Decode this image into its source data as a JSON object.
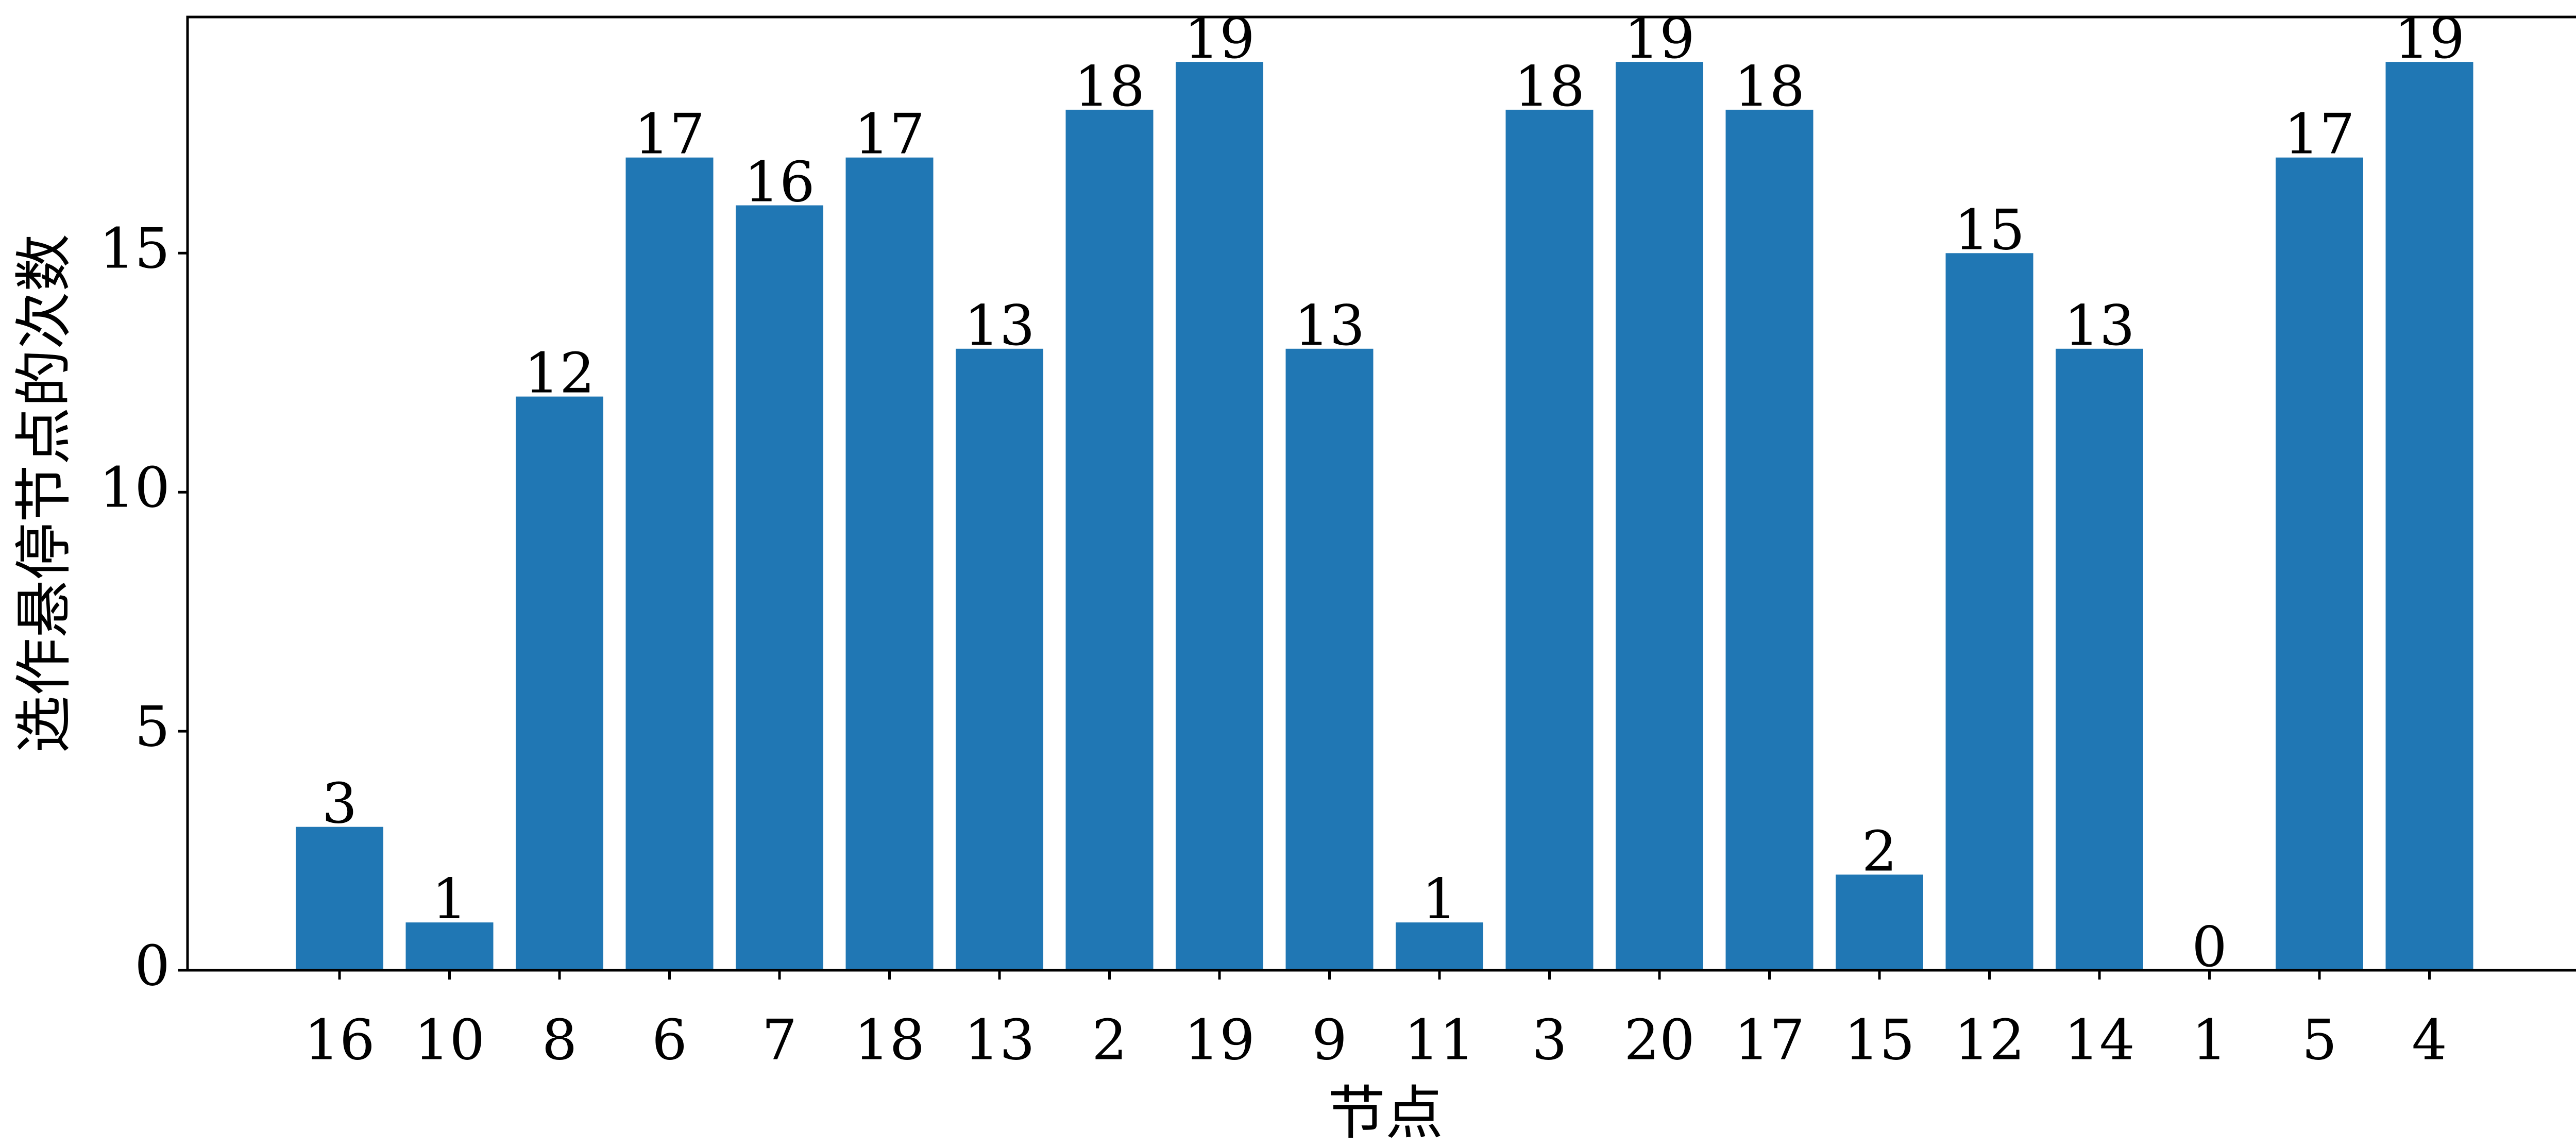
{
  "chart_data": {
    "type": "bar",
    "categories": [
      "16",
      "10",
      "8",
      "6",
      "7",
      "18",
      "13",
      "2",
      "19",
      "9",
      "11",
      "3",
      "20",
      "17",
      "15",
      "12",
      "14",
      "1",
      "5",
      "4"
    ],
    "values": [
      3,
      1,
      12,
      17,
      16,
      17,
      13,
      18,
      19,
      13,
      1,
      18,
      19,
      18,
      2,
      15,
      13,
      0,
      17,
      19
    ],
    "data_labels": [
      "3",
      "1",
      "12",
      "17",
      "16",
      "17",
      "13",
      "18",
      "19",
      "13",
      "1",
      "18",
      "19",
      "18",
      "2",
      "15",
      "13",
      "0",
      "17",
      "19"
    ],
    "xlabel": "节点",
    "ylabel": "选作悬停节点的次数",
    "yticks": [
      0,
      5,
      10,
      15
    ],
    "ylim": [
      0,
      20
    ],
    "grid": false,
    "legend": "none",
    "bar_color": "#2077b4"
  }
}
